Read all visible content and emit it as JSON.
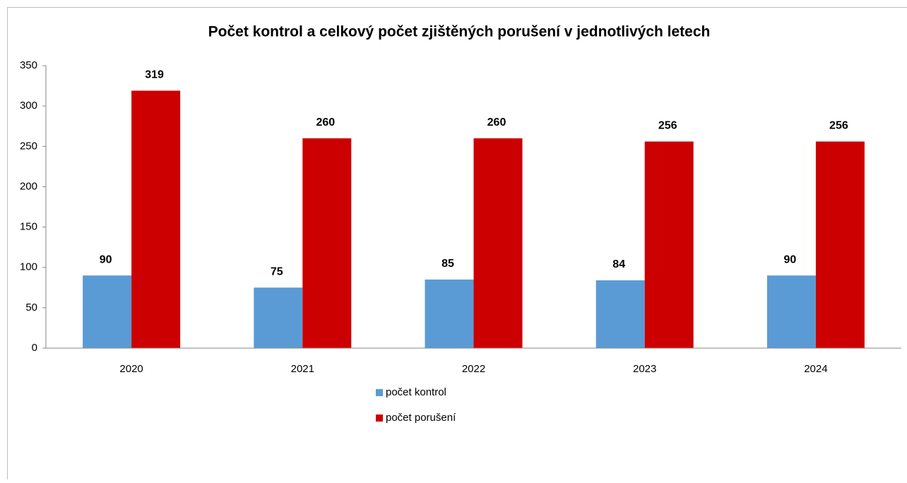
{
  "chart_data": {
    "type": "bar",
    "title": "Počet kontrol a celkový počet zjištěných porušení v jednotlivých letech",
    "categories": [
      "2020",
      "2021",
      "2022",
      "2023",
      "2024"
    ],
    "series": [
      {
        "name": "počet kontrol",
        "color": "#5b9bd5",
        "values": [
          90,
          75,
          85,
          84,
          90
        ]
      },
      {
        "name": "počet porušení",
        "color": "#cc0000",
        "values": [
          319,
          260,
          260,
          256,
          256
        ]
      }
    ],
    "ylim": [
      0,
      350
    ],
    "yticks": [
      0,
      50,
      100,
      150,
      200,
      250,
      300,
      350
    ],
    "grid": false
  }
}
